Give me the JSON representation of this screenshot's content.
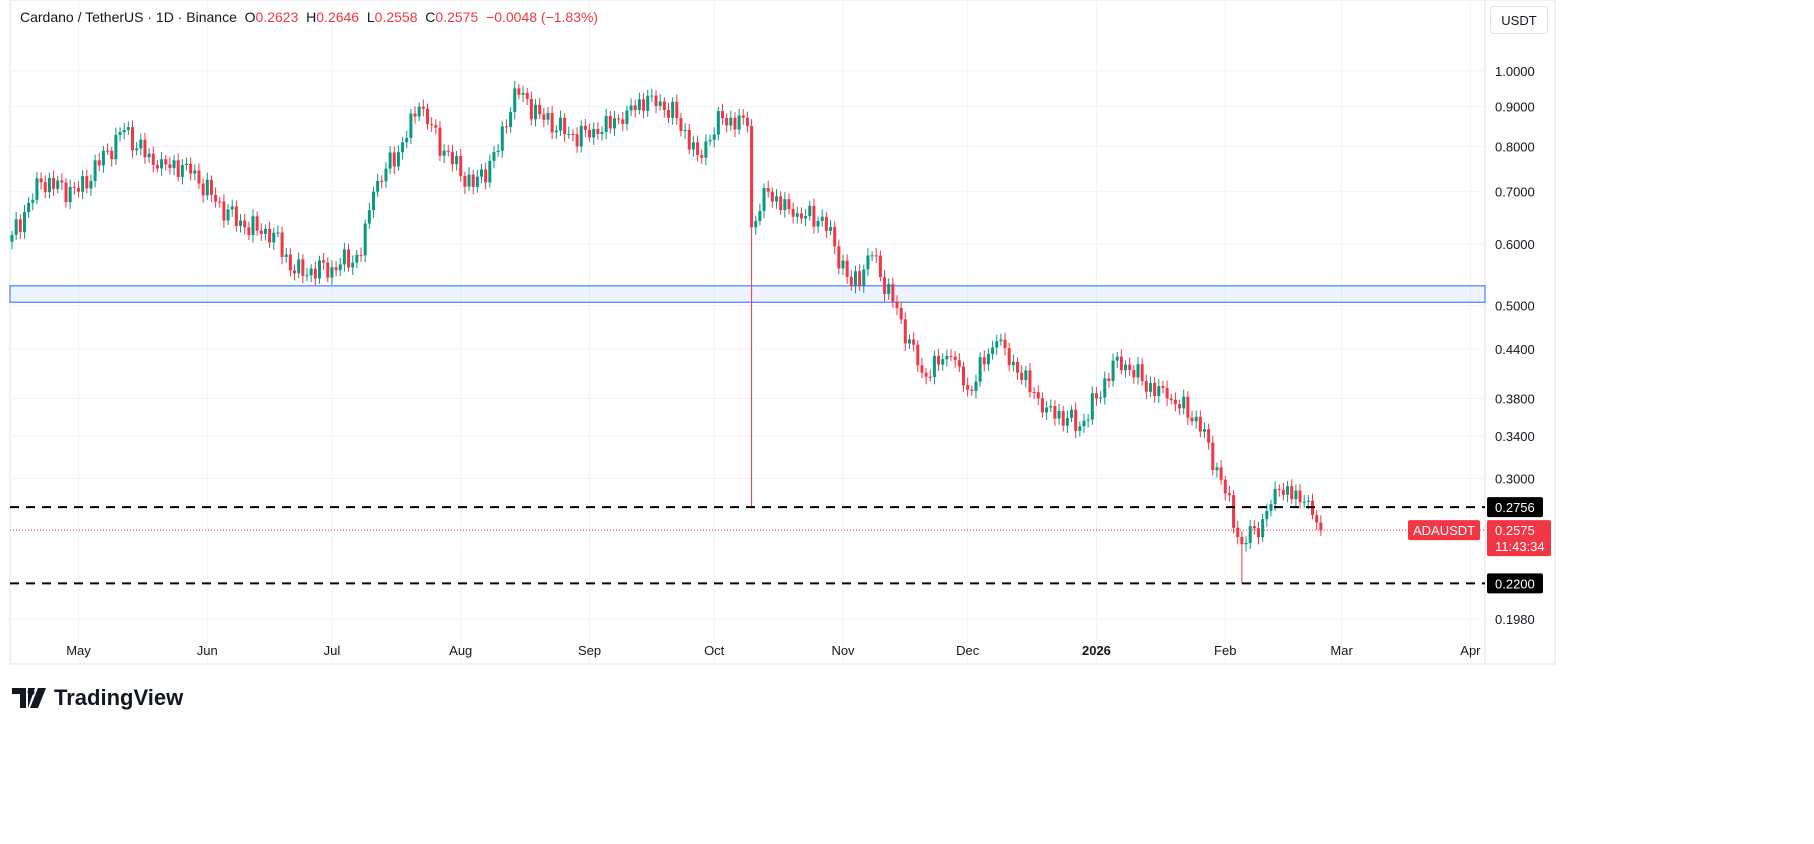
{
  "header": {
    "symbol": "Cardano / TetherUS · 1D · Binance",
    "o_label": "O",
    "o": "0.2623",
    "h_label": "H",
    "h": "0.2646",
    "l_label": "L",
    "l": "0.2558",
    "c_label": "C",
    "c": "0.2575",
    "change": "−0.0048 (−1.83%)"
  },
  "currency_button": "USDT",
  "footer": {
    "brand": "TradingView"
  },
  "colors": {
    "up": "#089981",
    "down": "#f23645",
    "zone": "#2962ff",
    "level": "#000000"
  },
  "chart_data": {
    "type": "candlestick",
    "scale": "log",
    "ylim": [
      0.19,
      1.07
    ],
    "grid": true,
    "x_tick_labels": [
      {
        "date": "2025-05-01",
        "label": "May"
      },
      {
        "date": "2025-06-01",
        "label": "Jun"
      },
      {
        "date": "2025-07-01",
        "label": "Jul"
      },
      {
        "date": "2025-08-01",
        "label": "Aug"
      },
      {
        "date": "2025-09-01",
        "label": "Sep"
      },
      {
        "date": "2025-10-01",
        "label": "Oct"
      },
      {
        "date": "2025-11-01",
        "label": "Nov"
      },
      {
        "date": "2025-12-01",
        "label": "Dec"
      },
      {
        "date": "2026-01-01",
        "label": "2026"
      },
      {
        "date": "2026-02-01",
        "label": "Feb"
      },
      {
        "date": "2026-03-01",
        "label": "Mar"
      },
      {
        "date": "2026-04-01",
        "label": "Apr"
      }
    ],
    "y_tick_labels": [
      "1.0000",
      "0.9000",
      "0.8000",
      "0.7000",
      "0.6000",
      "0.5000",
      "0.4400",
      "0.3800",
      "0.3400",
      "0.3000",
      "0.2200",
      "0.1980"
    ],
    "close_anchors": [
      [
        "2025-04-15",
        0.616
      ],
      [
        "2025-04-22",
        0.72
      ],
      [
        "2025-05-01",
        0.7
      ],
      [
        "2025-05-08",
        0.79
      ],
      [
        "2025-05-12",
        0.84
      ],
      [
        "2025-05-20",
        0.75
      ],
      [
        "2025-05-27",
        0.76
      ],
      [
        "2025-06-03",
        0.68
      ],
      [
        "2025-06-10",
        0.63
      ],
      [
        "2025-06-17",
        0.62
      ],
      [
        "2025-06-22",
        0.55
      ],
      [
        "2025-07-01",
        0.56
      ],
      [
        "2025-07-08",
        0.58
      ],
      [
        "2025-07-11",
        0.7
      ],
      [
        "2025-07-18",
        0.81
      ],
      [
        "2025-07-22",
        0.9
      ],
      [
        "2025-07-28",
        0.79
      ],
      [
        "2025-08-04",
        0.71
      ],
      [
        "2025-08-10",
        0.79
      ],
      [
        "2025-08-14",
        0.95
      ],
      [
        "2025-08-20",
        0.88
      ],
      [
        "2025-08-27",
        0.83
      ],
      [
        "2025-09-03",
        0.83
      ],
      [
        "2025-09-10",
        0.89
      ],
      [
        "2025-09-16",
        0.93
      ],
      [
        "2025-09-22",
        0.87
      ],
      [
        "2025-09-27",
        0.78
      ],
      [
        "2025-10-03",
        0.87
      ],
      [
        "2025-10-09",
        0.85
      ],
      [
        "2025-10-10",
        0.63
      ],
      [
        "2025-10-14",
        0.7
      ],
      [
        "2025-10-20",
        0.65
      ],
      [
        "2025-10-27",
        0.65
      ],
      [
        "2025-11-03",
        0.53
      ],
      [
        "2025-11-08",
        0.58
      ],
      [
        "2025-11-15",
        0.48
      ],
      [
        "2025-11-20",
        0.41
      ],
      [
        "2025-11-27",
        0.43
      ],
      [
        "2025-12-01",
        0.39
      ],
      [
        "2025-12-08",
        0.45
      ],
      [
        "2025-12-13",
        0.41
      ],
      [
        "2025-12-20",
        0.37
      ],
      [
        "2025-12-28",
        0.35
      ],
      [
        "2026-01-01",
        0.38
      ],
      [
        "2026-01-06",
        0.43
      ],
      [
        "2026-01-12",
        0.4
      ],
      [
        "2026-01-18",
        0.38
      ],
      [
        "2026-01-25",
        0.36
      ],
      [
        "2026-01-30",
        0.31
      ],
      [
        "2026-02-05",
        0.247
      ],
      [
        "2026-02-10",
        0.266
      ],
      [
        "2026-02-14",
        0.29
      ],
      [
        "2026-02-20",
        0.28
      ],
      [
        "2026-02-24",
        0.2575
      ]
    ],
    "special_wicks": [
      [
        "2025-10-10",
        0.2756
      ],
      [
        "2026-02-05",
        0.22
      ]
    ],
    "zone": {
      "low": 0.505,
      "high": 0.53
    },
    "levels": [
      {
        "price": 0.2756,
        "label": "0.2756"
      },
      {
        "price": 0.22,
        "label": "0.2200"
      }
    ],
    "last_price": {
      "symbol": "ADAUSDT",
      "price": "0.2575",
      "value": 0.2575,
      "countdown": "11:43:34"
    }
  }
}
